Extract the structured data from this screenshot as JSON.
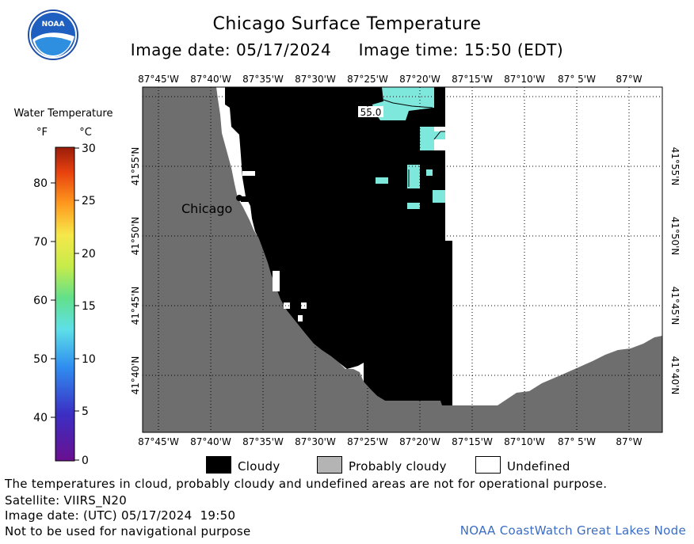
{
  "title": "Chicago Surface Temperature",
  "image_date_label": "Image date: 05/17/2024",
  "image_time_label": "Image time: 15:50 (EDT)",
  "logo_text": "NOAA",
  "colorbar": {
    "title": "Water Temperature",
    "unit_f": "°F",
    "unit_c": "°C",
    "f_ticks": [
      "80",
      "70",
      "60",
      "50",
      "40"
    ],
    "c_ticks": [
      "30",
      "25",
      "20",
      "15",
      "10",
      "5",
      "0"
    ]
  },
  "map": {
    "lon_labels": [
      "87°45'W",
      "87°40'W",
      "87°35'W",
      "87°30'W",
      "87°25'W",
      "87°20'W",
      "87°15'W",
      "87°10'W",
      "87° 5'W",
      "87°W"
    ],
    "lat_labels": [
      "41°55'N",
      "41°50'N",
      "41°45'N",
      "41°40'N"
    ],
    "city_label": "Chicago",
    "isotherm_label": "55.0"
  },
  "legend": {
    "cloudy": "Cloudy",
    "probably_cloudy": "Probably cloudy",
    "undefined": "Undefined"
  },
  "footer": {
    "disclaimer": "The temperatures in cloud, probably cloudy and undefined areas are not for operational purpose.",
    "satellite": "Satellite: VIIRS_N20",
    "utc_date": "Image date: (UTC) 05/17/2024  19:50",
    "nav_warning": "Not to be used for navigational purpose",
    "credit": "NOAA CoastWatch Great Lakes Node"
  },
  "colors": {
    "land": "#6e6e6e",
    "cloudy": "#000000",
    "probably_cloudy": "#b4b4b4",
    "undefined": "#ffffff",
    "water_55f": "#7fe8dc",
    "credit": "#3b6cc4"
  }
}
